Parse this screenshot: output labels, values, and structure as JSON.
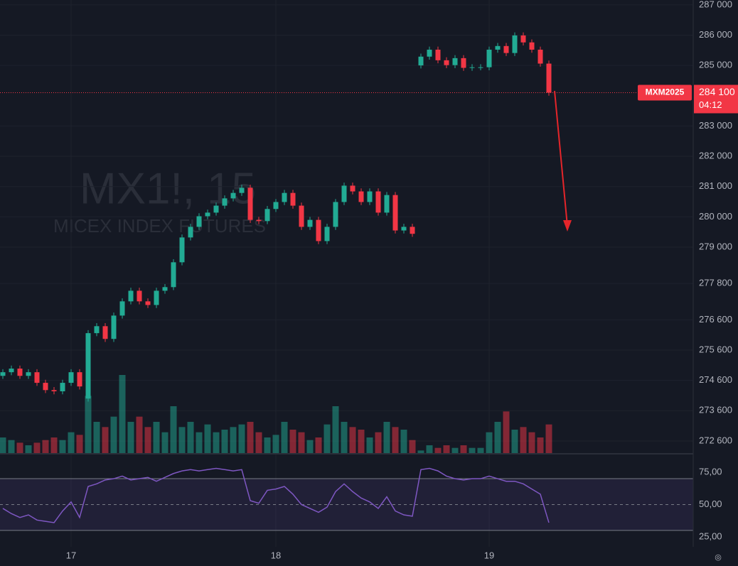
{
  "chart_data": {
    "type": "candlestick",
    "symbol_watermark": "MX1!, 15",
    "description_watermark": "MICEX INDEX FUTURES",
    "categories": [
      null,
      null,
      null,
      null,
      null,
      null,
      null,
      null,
      "17",
      null,
      null,
      null,
      null,
      null,
      null,
      null,
      null,
      null,
      null,
      null,
      null,
      null,
      null,
      null,
      null,
      null,
      null,
      null,
      null,
      null,
      null,
      null,
      "18",
      null,
      null,
      null,
      null,
      null,
      null,
      null,
      null,
      null,
      null,
      null,
      null,
      null,
      null,
      null,
      null,
      null,
      null,
      null,
      null,
      null,
      null,
      null,
      null,
      "19",
      null,
      null,
      null,
      null,
      null,
      null,
      null
    ],
    "open": [
      274750,
      274870,
      274990,
      274750,
      274870,
      274520,
      274280,
      274240,
      274520,
      274870,
      274000,
      276160,
      276390,
      275970,
      276740,
      277210,
      277560,
      277210,
      277090,
      277560,
      277680,
      278500,
      279320,
      279670,
      280020,
      280140,
      280370,
      280610,
      280790,
      280960,
      279900,
      279860,
      280260,
      280490,
      280790,
      280370,
      279670,
      279900,
      279200,
      279670,
      280490,
      281030,
      280840,
      280490,
      280840,
      280140,
      280720,
      279550,
      279670,
      285000,
      285290,
      285520,
      285170,
      285010,
      285240,
      284920,
      284940,
      284940,
      285520,
      285640,
      285410,
      285990,
      285760,
      285520,
      285060
    ],
    "high": [
      274970,
      275090,
      275090,
      274970,
      274970,
      274620,
      274380,
      274620,
      274970,
      274970,
      276260,
      276490,
      276490,
      276840,
      277310,
      277660,
      277660,
      277310,
      277660,
      277780,
      278600,
      279420,
      279770,
      280120,
      280240,
      280470,
      280710,
      280890,
      281060,
      281060,
      280000,
      280360,
      280590,
      280890,
      280890,
      280470,
      280000,
      280000,
      279770,
      280590,
      281130,
      281130,
      280940,
      280940,
      280940,
      280820,
      280820,
      279770,
      279770,
      285390,
      285620,
      285620,
      285270,
      285340,
      285340,
      285040,
      285040,
      285620,
      285740,
      285740,
      286090,
      286090,
      285860,
      285620,
      285160
    ],
    "low": [
      274650,
      274770,
      274650,
      274650,
      274420,
      274180,
      274140,
      274140,
      274420,
      274300,
      273900,
      276060,
      275870,
      275870,
      276640,
      277110,
      277110,
      276990,
      276990,
      277460,
      277580,
      278400,
      279220,
      279570,
      279920,
      280040,
      280270,
      280510,
      280690,
      279800,
      279760,
      279760,
      280160,
      280390,
      280270,
      279570,
      279570,
      279100,
      279100,
      279570,
      280390,
      280740,
      280390,
      280390,
      280040,
      280040,
      279450,
      279450,
      279340,
      284900,
      285190,
      285070,
      284910,
      284910,
      284820,
      284820,
      284840,
      284840,
      285420,
      285310,
      285310,
      285660,
      285420,
      284960,
      284000
    ],
    "close": [
      274870,
      274990,
      274750,
      274870,
      274520,
      274280,
      274240,
      274520,
      274870,
      274400,
      276160,
      276390,
      275970,
      276740,
      277210,
      277560,
      277210,
      277090,
      277560,
      277680,
      278500,
      279320,
      279670,
      280020,
      280140,
      280370,
      280610,
      280790,
      280960,
      279900,
      279860,
      280260,
      280490,
      280790,
      280370,
      279670,
      279900,
      279200,
      279670,
      280490,
      281030,
      280840,
      280490,
      280840,
      280140,
      280720,
      279550,
      279670,
      279440,
      285290,
      285520,
      285170,
      285010,
      285240,
      284920,
      284940,
      284940,
      285520,
      285640,
      285410,
      285990,
      285760,
      285520,
      285060,
      284100
    ],
    "volume": [
      30,
      25,
      20,
      15,
      20,
      25,
      30,
      25,
      40,
      35,
      110,
      60,
      50,
      70,
      150,
      60,
      70,
      50,
      60,
      40,
      90,
      50,
      60,
      40,
      55,
      40,
      45,
      50,
      55,
      60,
      40,
      30,
      35,
      60,
      45,
      40,
      25,
      30,
      55,
      90,
      60,
      50,
      45,
      30,
      40,
      60,
      50,
      45,
      25,
      5,
      15,
      10,
      15,
      10,
      15,
      10,
      10,
      40,
      60,
      80,
      45,
      50,
      40,
      30,
      55
    ],
    "up_color": "#22ab94",
    "down_color": "#f23645",
    "ylim": [
      272200,
      287160
    ],
    "yticks": [
      {
        "value": 287000,
        "label": "287 000"
      },
      {
        "value": 286000,
        "label": "286 000"
      },
      {
        "value": 285000,
        "label": "285 000"
      },
      {
        "value": 283000,
        "label": "283 000"
      },
      {
        "value": 282000,
        "label": "282 000"
      },
      {
        "value": 281000,
        "label": "281 000"
      },
      {
        "value": 280000,
        "label": "280 000"
      },
      {
        "value": 279000,
        "label": "279 000"
      },
      {
        "value": 277800,
        "label": "277 800"
      },
      {
        "value": 276600,
        "label": "276 600"
      },
      {
        "value": 275600,
        "label": "275 600"
      },
      {
        "value": 274600,
        "label": "274 600"
      },
      {
        "value": 273600,
        "label": "273 600"
      },
      {
        "value": 272600,
        "label": "272 600"
      }
    ],
    "price_tag": {
      "symbol": "MXM2025",
      "label": "284 100",
      "countdown": "04:12"
    },
    "rsi": {
      "values": [
        47,
        43,
        40,
        42,
        38,
        37,
        36,
        45,
        52,
        40,
        64,
        66,
        69,
        70,
        72,
        69,
        70,
        71,
        68,
        71,
        74,
        76,
        77,
        76,
        77,
        78,
        77,
        76,
        77,
        53,
        51,
        61,
        62,
        64,
        58,
        50,
        47,
        44,
        48,
        60,
        66,
        60,
        55,
        52,
        47,
        56,
        45,
        42,
        41,
        77,
        78,
        76,
        72,
        70,
        69,
        70,
        70,
        72,
        70,
        68,
        68,
        66,
        62,
        58,
        36
      ],
      "color": "#7e57c2",
      "ylim": [
        17.3,
        88.7
      ],
      "band": [
        70,
        30
      ],
      "yticks": [
        {
          "value": 75,
          "label": "75,00"
        },
        {
          "value": 50,
          "label": "50,00"
        },
        {
          "value": 25,
          "label": "25,00"
        }
      ]
    },
    "grid": true
  }
}
